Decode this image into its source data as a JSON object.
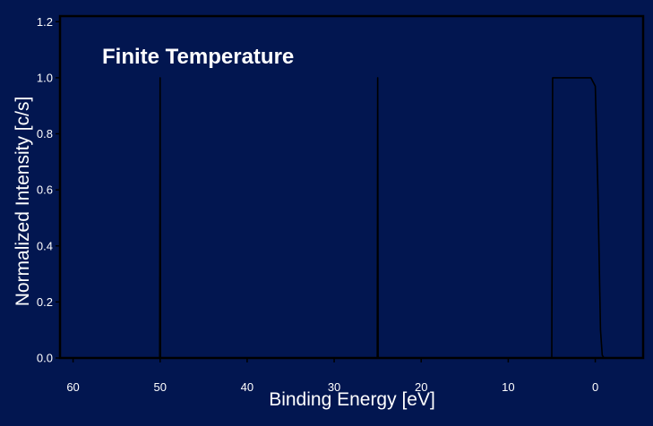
{
  "chart_data": {
    "type": "line",
    "title": "",
    "annotation": "Finite Temperature",
    "xlabel": "Binding Energy [eV]",
    "ylabel": "Normalized Intensity [c/s]",
    "xlim": [
      61.5,
      -5.5
    ],
    "ylim": [
      0.0,
      1.22
    ],
    "x_axis_reversed": true,
    "xticks": [
      60,
      50,
      40,
      30,
      20,
      10,
      0
    ],
    "yticks": [
      0.0,
      0.2,
      0.4,
      0.6,
      0.8,
      1.0,
      1.2
    ],
    "grid": false,
    "series": [
      {
        "x": [
          61.5,
          50.05,
          50.0,
          49.95,
          25.05,
          25.0,
          24.95,
          5.0,
          4.9,
          0.5,
          0.0,
          -0.3,
          -0.6,
          -0.8,
          -1.0,
          -2.0
        ],
        "y": [
          0.0,
          0.0,
          1.0,
          0.0,
          0.0,
          1.0,
          0.0,
          0.0,
          1.0,
          1.0,
          0.97,
          0.6,
          0.1,
          0.01,
          0.0,
          0.0
        ]
      }
    ],
    "colors": {
      "background": "#021650",
      "plot_background": "#021650",
      "line": "#000000",
      "axes": "#000000",
      "text": "#ffffff"
    }
  }
}
